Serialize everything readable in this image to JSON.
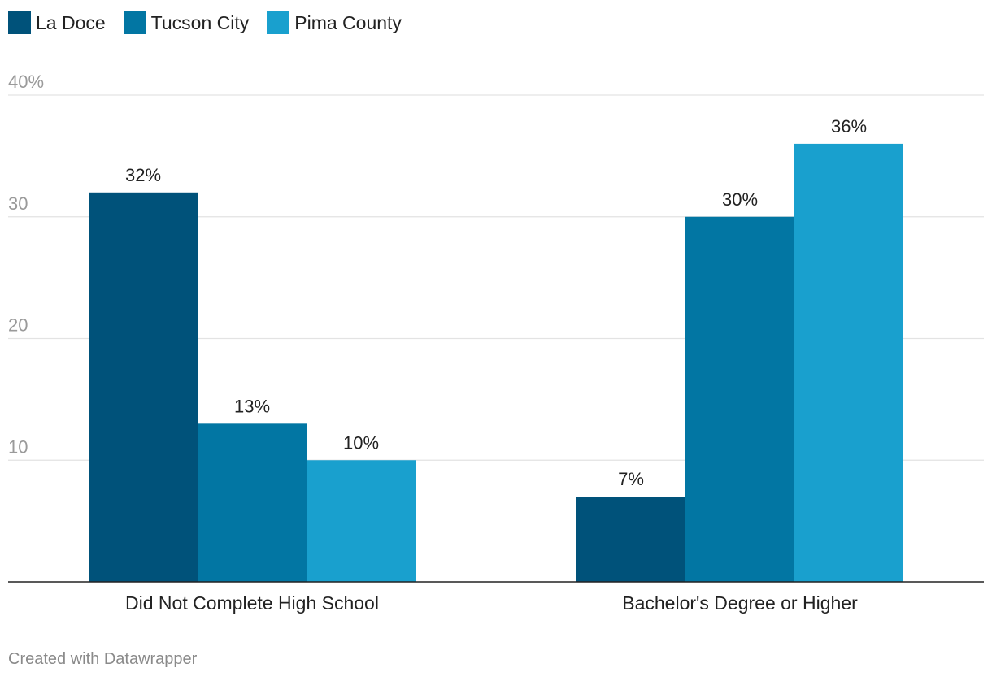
{
  "chart_data": {
    "type": "bar",
    "categories": [
      "Did Not Complete High School",
      "Bachelor's Degree or Higher"
    ],
    "series": [
      {
        "name": "La Doce",
        "values": [
          32,
          7
        ],
        "color": "#00527a"
      },
      {
        "name": "Tucson City",
        "values": [
          13,
          30
        ],
        "color": "#0276a3"
      },
      {
        "name": "Pima County",
        "values": [
          10,
          36
        ],
        "color": "#19a0ce"
      }
    ],
    "value_suffix": "%",
    "y_ticks": [
      {
        "value": 10,
        "label": "10"
      },
      {
        "value": 20,
        "label": "20"
      },
      {
        "value": 30,
        "label": "30"
      },
      {
        "value": 40,
        "label": "40%"
      }
    ],
    "ylim": [
      0,
      40
    ],
    "grid": true,
    "legend_position": "top-left",
    "title": "",
    "xlabel": "",
    "ylabel": ""
  },
  "credit": "Created with Datawrapper"
}
